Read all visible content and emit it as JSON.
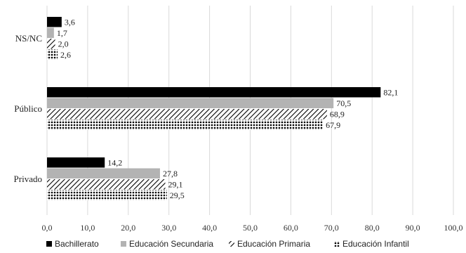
{
  "chart_data": {
    "type": "bar",
    "orientation": "horizontal",
    "categories": [
      "NS/NC",
      "Público",
      "Privado"
    ],
    "series": [
      {
        "name": "Bachillerato",
        "values": [
          3.6,
          82.1,
          14.2
        ],
        "labels": [
          "3,6",
          "82,1",
          "14,2"
        ],
        "pattern": "solid-black"
      },
      {
        "name": "Educación Secundaria",
        "values": [
          1.7,
          70.5,
          27.8
        ],
        "labels": [
          "1,7",
          "70,5",
          "27,8"
        ],
        "pattern": "solid-gray"
      },
      {
        "name": "Educación Primaria",
        "values": [
          2.0,
          68.9,
          29.1
        ],
        "labels": [
          "2,0",
          "68,9",
          "29,1"
        ],
        "pattern": "diagonal-stripes"
      },
      {
        "name": "Educación Infantil",
        "values": [
          2.6,
          67.9,
          29.5
        ],
        "labels": [
          "2,6",
          "67,9",
          "29,5"
        ],
        "pattern": "dots"
      }
    ],
    "xlim": [
      0,
      100
    ],
    "xticks": [
      "0,0",
      "10,0",
      "20,0",
      "30,0",
      "40,0",
      "50,0",
      "60,0",
      "70,0",
      "80,0",
      "90,0",
      "100,0"
    ],
    "grid": true,
    "legend": "bottom",
    "colors": {
      "bachillerato": "#000000",
      "secundaria": "#b3b3b3",
      "pattern_ink": "#000000"
    }
  }
}
